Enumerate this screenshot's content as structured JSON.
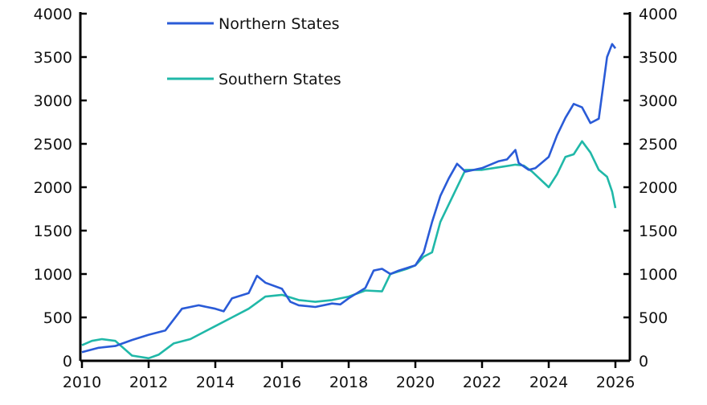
{
  "chart_data": {
    "type": "line",
    "title": "",
    "xlabel": "",
    "ylabel": "",
    "xlim": [
      2010,
      2026.7
    ],
    "ylim": [
      0,
      4000
    ],
    "y_axes": "left and right (mirrored)",
    "x_ticks": [
      "2010",
      "2012",
      "2014",
      "2016",
      "2018",
      "2020",
      "2022",
      "2024",
      "2026"
    ],
    "y_ticks": [
      "0",
      "500",
      "1000",
      "1500",
      "2000",
      "2500",
      "3000",
      "3500",
      "4000"
    ],
    "grid": false,
    "legend": {
      "placement": "top-left",
      "entries": [
        "Northern States",
        "Southern States"
      ]
    },
    "series": [
      {
        "name": "Northern States",
        "color": "#2a5bd7",
        "x": [
          2010.0,
          2010.5,
          2011.0,
          2011.5,
          2012.0,
          2012.5,
          2013.0,
          2013.5,
          2014.0,
          2014.25,
          2014.5,
          2015.0,
          2015.25,
          2015.5,
          2016.0,
          2016.25,
          2016.5,
          2017.0,
          2017.5,
          2017.75,
          2018.0,
          2018.5,
          2018.75,
          2019.0,
          2019.25,
          2019.5,
          2020.0,
          2020.25,
          2020.5,
          2020.75,
          2021.0,
          2021.25,
          2021.5,
          2022.0,
          2022.5,
          2022.75,
          2023.0,
          2023.1,
          2023.4,
          2023.6,
          2024.0,
          2024.25,
          2024.5,
          2024.75,
          2025.0,
          2025.25,
          2025.5,
          2025.75,
          2025.9,
          2026.0
        ],
        "y": [
          100,
          150,
          170,
          240,
          300,
          350,
          600,
          640,
          600,
          570,
          720,
          780,
          980,
          900,
          830,
          680,
          640,
          620,
          660,
          650,
          720,
          840,
          1040,
          1060,
          1000,
          1040,
          1100,
          1250,
          1600,
          1900,
          2100,
          2270,
          2180,
          2220,
          2300,
          2320,
          2430,
          2280,
          2200,
          2220,
          2350,
          2600,
          2800,
          2960,
          2920,
          2740,
          2790,
          3500,
          3650,
          3600
        ]
      },
      {
        "name": "Southern States",
        "color": "#20b8a8",
        "x": [
          2010.0,
          2010.3,
          2010.6,
          2011.0,
          2011.5,
          2012.0,
          2012.3,
          2012.75,
          2013.25,
          2014.0,
          2014.5,
          2015.0,
          2015.5,
          2016.0,
          2016.5,
          2017.0,
          2017.5,
          2018.0,
          2018.5,
          2019.0,
          2019.25,
          2019.75,
          2020.0,
          2020.25,
          2020.5,
          2020.75,
          2021.0,
          2021.5,
          2022.0,
          2022.5,
          2023.0,
          2023.25,
          2023.5,
          2024.0,
          2024.25,
          2024.5,
          2024.75,
          2025.0,
          2025.25,
          2025.5,
          2025.75,
          2025.9,
          2026.0
        ],
        "y": [
          180,
          230,
          250,
          230,
          60,
          30,
          70,
          200,
          250,
          400,
          500,
          600,
          740,
          760,
          700,
          680,
          700,
          740,
          810,
          800,
          1000,
          1060,
          1100,
          1200,
          1250,
          1600,
          1800,
          2200,
          2200,
          2230,
          2260,
          2250,
          2180,
          2000,
          2150,
          2350,
          2380,
          2530,
          2400,
          2200,
          2120,
          1950,
          1760
        ]
      }
    ]
  }
}
